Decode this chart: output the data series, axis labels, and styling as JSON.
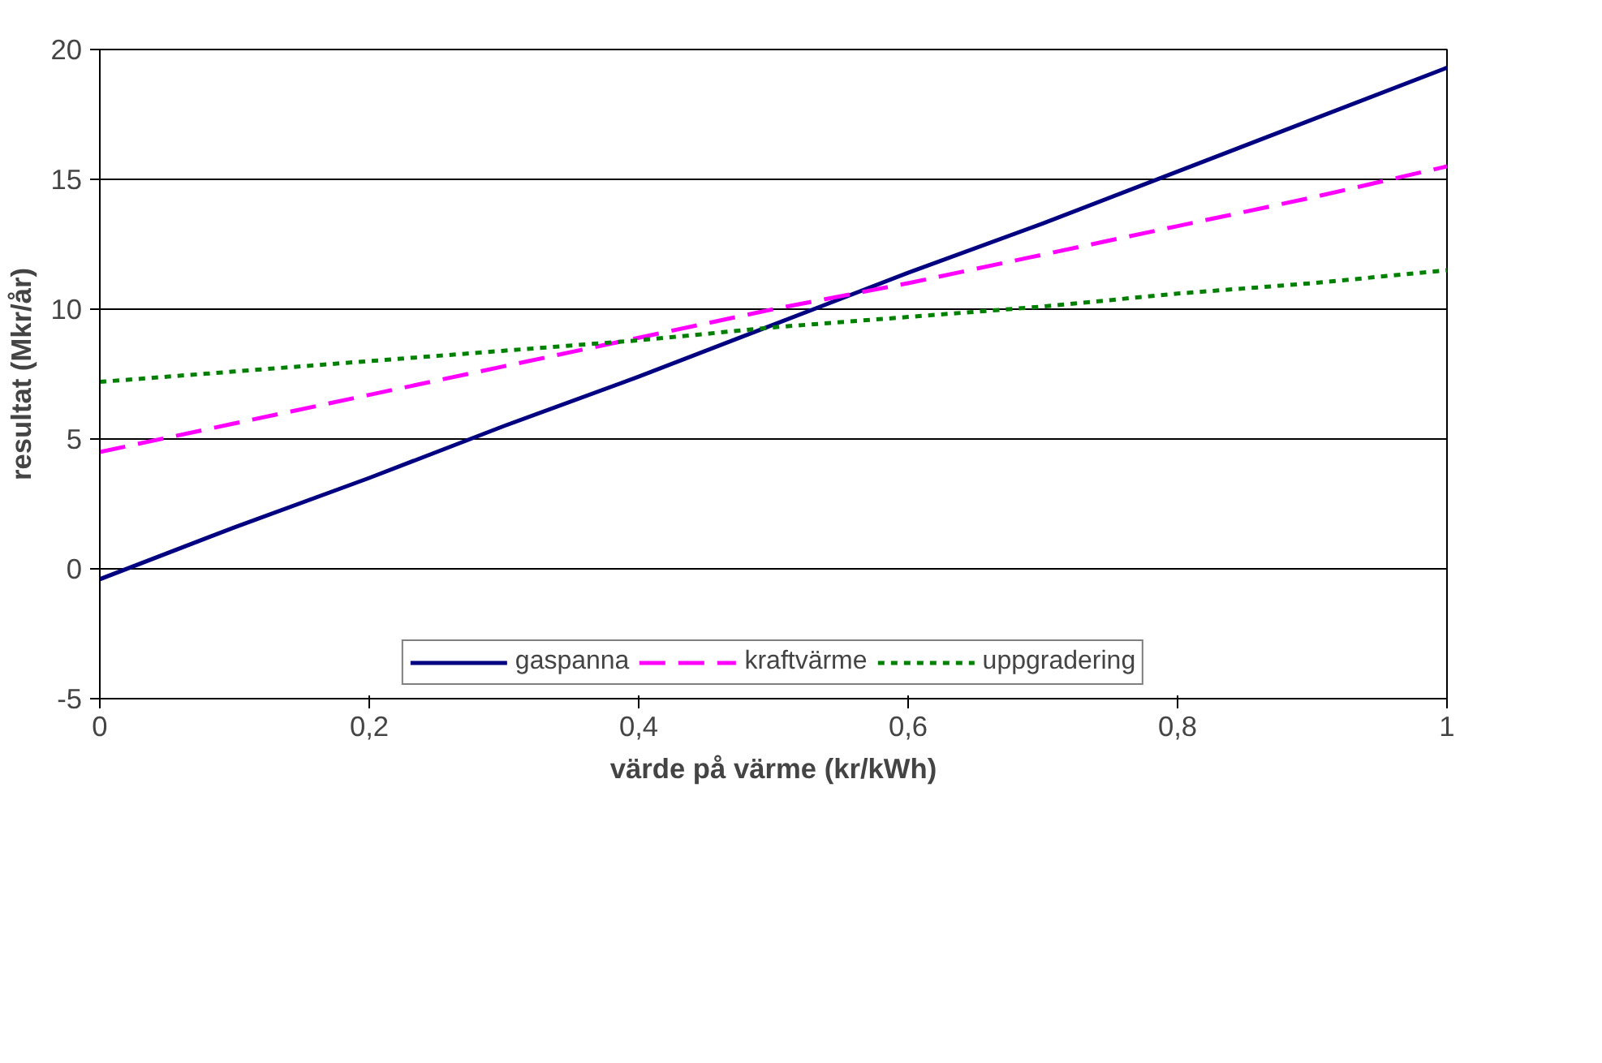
{
  "chart_data": {
    "type": "line",
    "xlabel": "värde på värme (kr/kWh)",
    "ylabel": "resultat (Mkr/år)",
    "x": [
      0,
      0.1,
      0.2,
      0.3,
      0.4,
      0.5,
      0.6,
      0.7,
      0.8,
      0.9,
      1
    ],
    "series": [
      {
        "name": "gaspanna",
        "color": "#000080",
        "line_style": "solid",
        "values": [
          -0.4,
          1.6,
          3.5,
          5.5,
          7.4,
          9.4,
          11.4,
          13.3,
          15.3,
          17.3,
          19.3
        ]
      },
      {
        "name": "kraftvärme",
        "color": "#ff00ff",
        "line_style": "dashed",
        "values": [
          4.5,
          5.6,
          6.7,
          7.8,
          8.9,
          10.0,
          11.0,
          12.1,
          13.2,
          14.3,
          15.5
        ]
      },
      {
        "name": "uppgradering",
        "color": "#008000",
        "line_style": "dotted",
        "values": [
          7.2,
          7.6,
          8.0,
          8.4,
          8.8,
          9.3,
          9.7,
          10.1,
          10.6,
          11.0,
          11.5
        ]
      }
    ],
    "xlim": [
      0,
      1
    ],
    "ylim": [
      -5,
      20
    ],
    "xticks": [
      0,
      {
        "value": 0.2,
        "label": "0,2"
      },
      {
        "value": 0.4,
        "label": "0,4"
      },
      {
        "value": 0.6,
        "label": "0,6"
      },
      {
        "value": 0.8,
        "label": "0,8"
      },
      1
    ],
    "yticks": [
      -5,
      0,
      5,
      10,
      15,
      20
    ],
    "grid": "y",
    "legend": "bottom",
    "marker": "none"
  }
}
